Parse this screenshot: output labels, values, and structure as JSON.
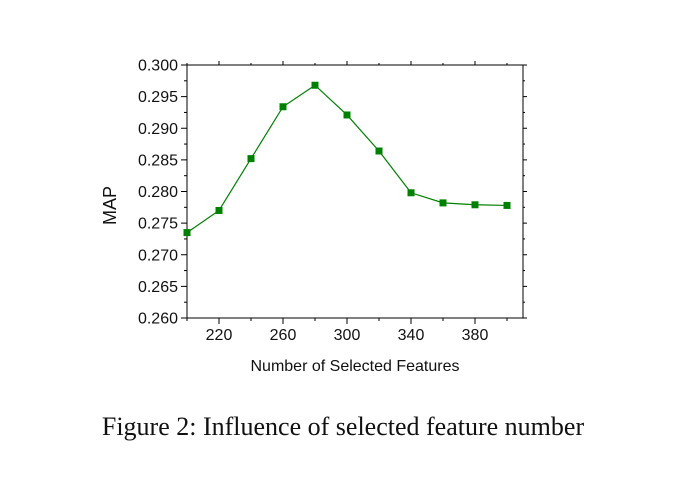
{
  "figure": {
    "caption": "Figure 2: Influence of selected feature number"
  },
  "chart_data": {
    "type": "line",
    "xlabel": "Number of Selected Features",
    "ylabel": "MAP",
    "xlim": [
      200,
      410
    ],
    "ylim": [
      0.26,
      0.3
    ],
    "x_ticks": [
      "220",
      "260",
      "300",
      "340",
      "380"
    ],
    "x_tick_values": [
      220,
      260,
      300,
      340,
      380
    ],
    "y_ticks": [
      "0.260",
      "0.265",
      "0.270",
      "0.275",
      "0.280",
      "0.285",
      "0.290",
      "0.295",
      "0.300"
    ],
    "y_tick_values": [
      0.26,
      0.265,
      0.27,
      0.275,
      0.28,
      0.285,
      0.29,
      0.295,
      0.3
    ],
    "grid": false,
    "marker": "square",
    "series": [
      {
        "color": "#008000",
        "x": [
          200,
          220,
          240,
          260,
          280,
          300,
          320,
          340,
          360,
          380,
          400
        ],
        "y": [
          0.2735,
          0.277,
          0.2852,
          0.2934,
          0.2968,
          0.2921,
          0.2864,
          0.2798,
          0.2782,
          0.2779,
          0.2778
        ]
      }
    ]
  }
}
